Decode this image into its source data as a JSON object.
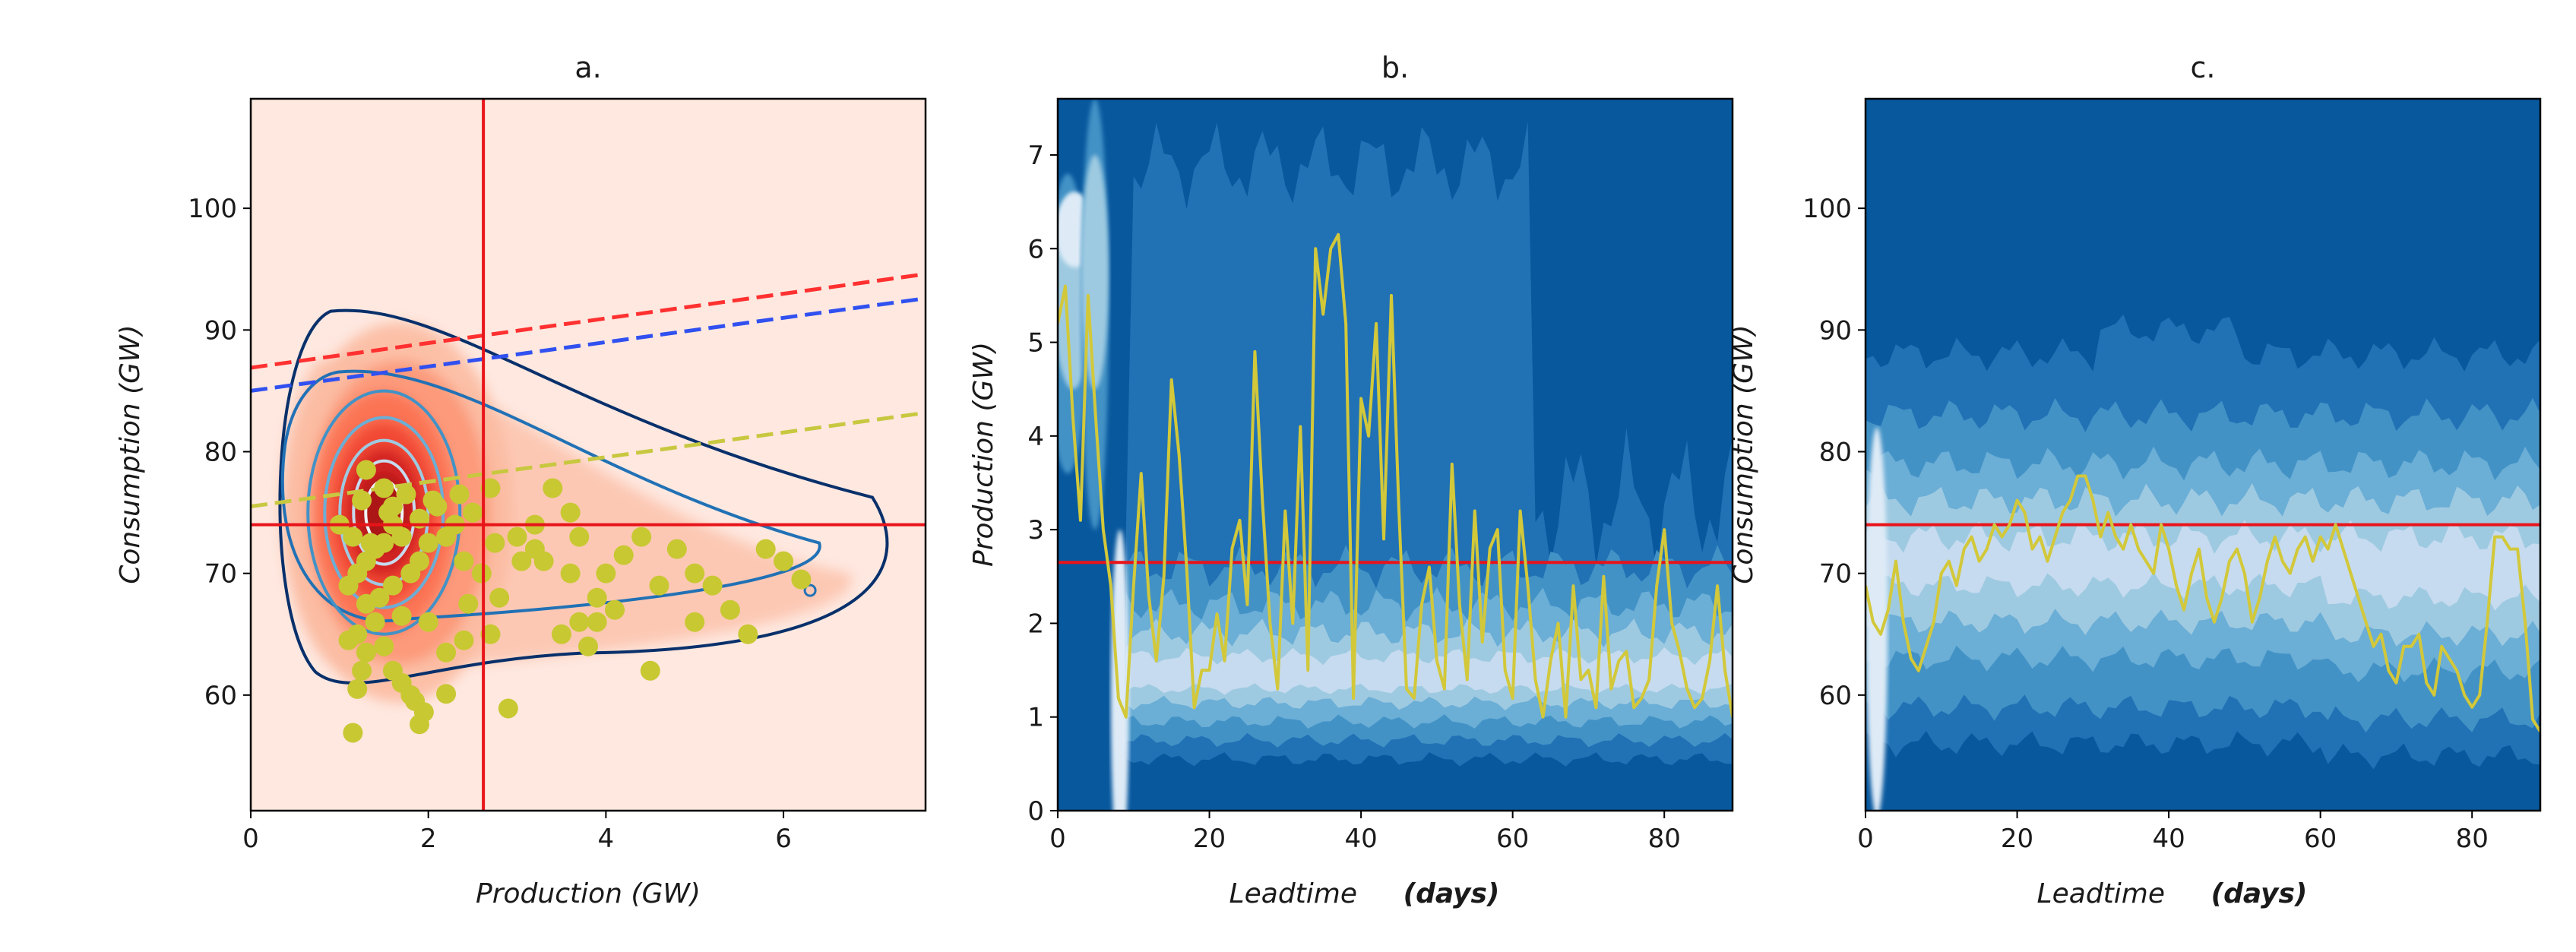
{
  "chart_data": [
    {
      "type": "scatter",
      "title": "a.",
      "xlabel": "Production (GW)",
      "ylabel": "Consumption (GW)",
      "xlim": [
        0,
        7.6
      ],
      "ylim": [
        50.5,
        109
      ],
      "xticks": [
        0,
        2,
        4,
        6
      ],
      "yticks": [
        60,
        70,
        80,
        90,
        100
      ],
      "background": "#fee8e0",
      "density_fill_color": "#cb181d",
      "contour_color": "#08306b",
      "density_peak": {
        "x": 1.5,
        "y": 75
      },
      "vline_x": 2.62,
      "hline_y": 74,
      "ref_line_color": "#e8141a",
      "dashed_lines": [
        {
          "color": "#ff3030",
          "x": [
            0,
            7.6
          ],
          "y": [
            86.9,
            94.6
          ]
        },
        {
          "color": "#3050f0",
          "x": [
            0,
            7.6
          ],
          "y": [
            85.0,
            92.6
          ]
        },
        {
          "color": "#c8c840",
          "x": [
            0,
            7.6
          ],
          "y": [
            75.5,
            83.2
          ]
        }
      ],
      "points_color": "#c8c832",
      "points": [
        [
          1.15,
          56.9
        ],
        [
          1.2,
          60.5
        ],
        [
          1.25,
          62
        ],
        [
          1.3,
          63.5
        ],
        [
          1.1,
          64.5
        ],
        [
          1.2,
          65
        ],
        [
          1.4,
          66
        ],
        [
          1.5,
          64
        ],
        [
          1.6,
          62
        ],
        [
          1.7,
          61
        ],
        [
          1.8,
          60
        ],
        [
          1.85,
          59.5
        ],
        [
          1.95,
          58.6
        ],
        [
          2.2,
          60.1
        ],
        [
          1.9,
          57.6
        ],
        [
          2.9,
          58.9
        ],
        [
          1.3,
          78.5
        ],
        [
          1.5,
          77
        ],
        [
          1.55,
          75
        ],
        [
          1.6,
          74
        ],
        [
          1.7,
          73
        ],
        [
          1.5,
          72.5
        ],
        [
          1.4,
          72
        ],
        [
          1.3,
          71
        ],
        [
          1.2,
          70
        ],
        [
          1.45,
          68
        ],
        [
          1.6,
          69
        ],
        [
          1.8,
          70
        ],
        [
          1.9,
          71
        ],
        [
          2.0,
          72.5
        ],
        [
          2.2,
          73
        ],
        [
          2.3,
          74
        ],
        [
          2.5,
          75
        ],
        [
          2.7,
          77
        ],
        [
          2.1,
          75.5
        ],
        [
          2.4,
          71
        ],
        [
          2.6,
          70
        ],
        [
          2.75,
          72.5
        ],
        [
          3.0,
          73
        ],
        [
          3.2,
          72
        ],
        [
          3.3,
          71
        ],
        [
          3.2,
          74
        ],
        [
          2.8,
          68
        ],
        [
          2.7,
          65
        ],
        [
          2.4,
          64.5
        ],
        [
          2.2,
          63.5
        ],
        [
          3.4,
          77
        ],
        [
          3.6,
          75
        ],
        [
          3.7,
          73
        ],
        [
          3.6,
          70
        ],
        [
          3.5,
          65
        ],
        [
          3.7,
          66
        ],
        [
          3.9,
          68
        ],
        [
          4.0,
          70
        ],
        [
          4.2,
          71.5
        ],
        [
          4.4,
          73
        ],
        [
          4.1,
          67
        ],
        [
          4.6,
          69
        ],
        [
          4.8,
          72
        ],
        [
          5.0,
          70
        ],
        [
          5.2,
          69
        ],
        [
          5.4,
          67
        ],
        [
          5.6,
          65
        ],
        [
          5.0,
          66
        ],
        [
          5.8,
          72
        ],
        [
          6.0,
          71
        ],
        [
          6.2,
          69.5
        ],
        [
          4.5,
          62
        ],
        [
          3.8,
          64
        ],
        [
          3.9,
          66
        ],
        [
          1.0,
          74
        ],
        [
          1.15,
          73
        ],
        [
          1.25,
          76
        ],
        [
          1.35,
          72.5
        ],
        [
          1.6,
          75.5
        ],
        [
          1.75,
          76.5
        ],
        [
          1.9,
          74.5
        ],
        [
          2.05,
          76
        ],
        [
          2.35,
          76.5
        ],
        [
          1.1,
          69
        ],
        [
          1.3,
          67.5
        ],
        [
          1.7,
          66.5
        ],
        [
          2.0,
          66
        ],
        [
          2.45,
          67.5
        ],
        [
          3.05,
          71
        ]
      ]
    },
    {
      "type": "heatmap",
      "title": "b.",
      "xlabel": "Leadtime",
      "xlabel_unit": "(days)",
      "ylabel": "Production (GW)",
      "xlim": [
        0,
        89
      ],
      "ylim": [
        0,
        7.6
      ],
      "xticks": [
        0,
        20,
        40,
        60,
        80
      ],
      "yticks": [
        0,
        1,
        2,
        3,
        4,
        5,
        6,
        7
      ],
      "hline_y": 2.65,
      "ref_line_color": "#e8141a",
      "trace_color": "#d2c83a",
      "trace_x": [
        0,
        1,
        2,
        3,
        4,
        5,
        6,
        7,
        8,
        9,
        10,
        11,
        12,
        13,
        14,
        15,
        16,
        17,
        18,
        19,
        20,
        21,
        22,
        23,
        24,
        25,
        26,
        27,
        28,
        29,
        30,
        31,
        32,
        33,
        34,
        35,
        36,
        37,
        38,
        39,
        40,
        41,
        42,
        43,
        44,
        45,
        46,
        47,
        48,
        49,
        50,
        51,
        52,
        53,
        54,
        55,
        56,
        57,
        58,
        59,
        60,
        61,
        62,
        63,
        64,
        65,
        66,
        67,
        68,
        69,
        70,
        71,
        72,
        73,
        74,
        75,
        76,
        77,
        78,
        79,
        80,
        81,
        82,
        83,
        84,
        85,
        86,
        87,
        88,
        89
      ],
      "trace_y": [
        5.2,
        5.6,
        4.2,
        3.1,
        5.5,
        4.2,
        3.0,
        2.4,
        1.2,
        1.0,
        2.4,
        3.6,
        2.3,
        1.6,
        2.5,
        4.6,
        3.8,
        2.6,
        1.1,
        1.5,
        1.5,
        2.1,
        1.6,
        2.8,
        3.1,
        2.2,
        4.9,
        3.3,
        2.0,
        1.3,
        3.2,
        2.0,
        4.1,
        1.5,
        6.0,
        5.3,
        6.0,
        6.15,
        5.2,
        1.2,
        4.4,
        4.0,
        5.2,
        2.9,
        5.5,
        3.2,
        1.3,
        1.2,
        2.2,
        2.6,
        1.6,
        1.3,
        3.7,
        2.2,
        1.4,
        3.2,
        1.8,
        2.8,
        3.0,
        1.5,
        1.2,
        3.2,
        2.4,
        1.4,
        1.0,
        1.6,
        2.0,
        1.0,
        2.4,
        1.4,
        1.5,
        1.1,
        2.5,
        1.3,
        1.6,
        1.7,
        1.1,
        1.2,
        1.4,
        2.4,
        3.0,
        2.0,
        1.7,
        1.3,
        1.1,
        1.2,
        1.6,
        2.4,
        1.5,
        1.0
      ]
    },
    {
      "type": "heatmap",
      "title": "c.",
      "xlabel": "Leadtime",
      "xlabel_unit": "(days)",
      "ylabel": "Consumption (GW)",
      "xlim": [
        0,
        89
      ],
      "ylim": [
        50.5,
        109
      ],
      "xticks": [
        0,
        20,
        40,
        60,
        80
      ],
      "yticks": [
        60,
        70,
        80,
        90,
        100
      ],
      "hline_y": 74,
      "ref_line_color": "#e8141a",
      "trace_color": "#d2c83a",
      "trace_x": [
        0,
        1,
        2,
        3,
        4,
        5,
        6,
        7,
        8,
        9,
        10,
        11,
        12,
        13,
        14,
        15,
        16,
        17,
        18,
        19,
        20,
        21,
        22,
        23,
        24,
        25,
        26,
        27,
        28,
        29,
        30,
        31,
        32,
        33,
        34,
        35,
        36,
        37,
        38,
        39,
        40,
        41,
        42,
        43,
        44,
        45,
        46,
        47,
        48,
        49,
        50,
        51,
        52,
        53,
        54,
        55,
        56,
        57,
        58,
        59,
        60,
        61,
        62,
        63,
        64,
        65,
        66,
        67,
        68,
        69,
        70,
        71,
        72,
        73,
        74,
        75,
        76,
        77,
        78,
        79,
        80,
        81,
        82,
        83,
        84,
        85,
        86,
        87,
        88,
        89
      ],
      "trace_y": [
        69,
        66,
        65,
        67,
        71,
        66,
        63,
        62,
        64,
        66,
        70,
        71,
        69,
        72,
        73,
        71,
        72,
        74,
        73,
        74,
        76,
        75,
        72,
        73,
        71,
        73,
        75,
        76,
        78,
        78,
        76,
        73,
        75,
        73,
        72,
        74,
        72,
        71,
        70,
        74,
        72,
        69,
        67,
        70,
        72,
        68,
        66,
        68,
        71,
        72,
        70,
        66,
        68,
        71,
        73,
        71,
        70,
        72,
        73,
        71,
        73,
        72,
        74,
        72,
        70,
        68,
        66,
        64,
        65,
        62,
        61,
        64,
        64,
        65,
        61,
        60,
        64,
        63,
        62,
        60,
        59,
        60,
        66,
        73,
        73,
        72,
        72,
        66,
        58,
        57
      ]
    }
  ]
}
